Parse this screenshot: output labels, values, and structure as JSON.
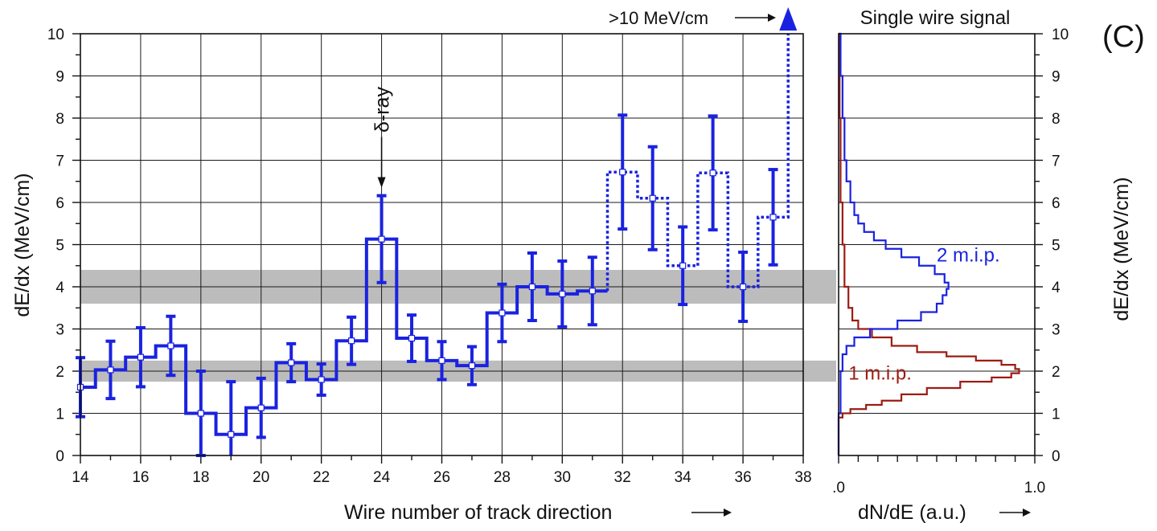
{
  "panel_label": "(C)",
  "colors": {
    "blue": "#1a22e0",
    "red": "#9c1c12",
    "band": "#bcbcbc",
    "grid": "#1a1a1a"
  },
  "chart_data": [
    {
      "type": "line",
      "xlabel": "Wire number of track direction",
      "ylabel": "dE/dx (MeV/cm)",
      "xlim": [
        14,
        38
      ],
      "ylim": [
        0,
        10
      ],
      "x_ticks": [
        14,
        16,
        18,
        20,
        22,
        24,
        26,
        28,
        30,
        32,
        34,
        36,
        38
      ],
      "y_ticks": [
        0,
        1,
        2,
        3,
        4,
        5,
        6,
        7,
        8,
        9,
        10
      ],
      "grid": true,
      "bands": [
        {
          "y": [
            1.75,
            2.25
          ]
        },
        {
          "y": [
            3.6,
            4.4
          ]
        }
      ],
      "series": [
        {
          "style": "solid histogram with error bars",
          "x": [
            14,
            15,
            16,
            17,
            18,
            19,
            20,
            21,
            22,
            23,
            24,
            25,
            26,
            27,
            28,
            29,
            30,
            31
          ],
          "y": [
            1.62,
            2.03,
            2.33,
            2.6,
            1.0,
            0.5,
            1.13,
            2.2,
            1.8,
            2.72,
            5.13,
            2.78,
            2.25,
            2.13,
            3.38,
            4.0,
            3.83,
            3.9
          ],
          "err": [
            0.7,
            0.68,
            0.7,
            0.7,
            1.0,
            1.25,
            0.7,
            0.45,
            0.37,
            0.56,
            1.03,
            0.55,
            0.45,
            0.45,
            0.68,
            0.8,
            0.78,
            0.8
          ]
        },
        {
          "style": "dotted histogram with error bars",
          "x": [
            32,
            33,
            34,
            35,
            36,
            37
          ],
          "y": [
            6.72,
            6.1,
            4.5,
            6.7,
            4.0,
            5.65
          ],
          "err": [
            1.35,
            1.22,
            0.92,
            1.35,
            0.82,
            1.13
          ]
        }
      ],
      "annotations": [
        {
          "text": "δ-ray",
          "x": 24,
          "y": 7.5
        },
        {
          "text": ">10 MeV/cm",
          "x": 37.5,
          "y": 10
        }
      ]
    },
    {
      "type": "line",
      "title": "Single wire signal",
      "xlabel": "dN/dE (a.u.)",
      "ylabel": "dE/dx (MeV/cm)",
      "xlim": [
        0,
        1.0
      ],
      "ylim": [
        0,
        10
      ],
      "x_tick_labels": [
        ".0",
        "1.0"
      ],
      "y_ticks": [
        0,
        1,
        2,
        3,
        4,
        5,
        6,
        7,
        8,
        9,
        10
      ],
      "series": [
        {
          "name": "2 m.i.p.",
          "y": [
            0.0,
            0.5,
            1.0,
            1.5,
            2.0,
            2.4,
            2.6,
            2.8,
            3.0,
            3.2,
            3.4,
            3.6,
            3.8,
            3.95,
            4.1,
            4.3,
            4.5,
            4.7,
            4.9,
            5.1,
            5.3,
            5.5,
            5.7,
            6.0,
            6.5,
            7.0,
            8.0,
            9.0,
            10.0
          ],
          "x": [
            0.0,
            0.0,
            0.01,
            0.01,
            0.02,
            0.04,
            0.08,
            0.16,
            0.3,
            0.42,
            0.5,
            0.53,
            0.55,
            0.56,
            0.54,
            0.49,
            0.41,
            0.32,
            0.24,
            0.18,
            0.13,
            0.1,
            0.08,
            0.06,
            0.04,
            0.03,
            0.02,
            0.01,
            0.0
          ]
        },
        {
          "name": "1 m.i.p.",
          "y": [
            0.0,
            0.8,
            0.9,
            1.0,
            1.1,
            1.2,
            1.3,
            1.45,
            1.6,
            1.75,
            1.85,
            1.95,
            2.05,
            2.15,
            2.25,
            2.35,
            2.45,
            2.6,
            2.8,
            3.0,
            3.2,
            3.5,
            4.0,
            5.0,
            6.0,
            7.0,
            8.0,
            10.0
          ],
          "x": [
            0.0,
            0.0,
            0.02,
            0.06,
            0.14,
            0.22,
            0.32,
            0.45,
            0.62,
            0.78,
            0.88,
            0.92,
            0.9,
            0.83,
            0.7,
            0.55,
            0.4,
            0.27,
            0.17,
            0.1,
            0.07,
            0.05,
            0.03,
            0.02,
            0.01,
            0.01,
            0.005,
            0.0
          ]
        }
      ]
    }
  ]
}
